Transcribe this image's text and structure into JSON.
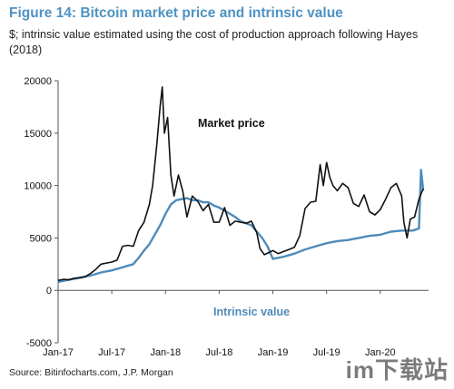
{
  "title": "Figure 14: Bitcoin market price and intrinsic value",
  "subtitle": "$; intrinsic value estimated using the cost of production approach following Hayes (2018)",
  "source": "Source: Bitinfocharts.com, J.P. Morgan",
  "watermark": "im下载站",
  "colors": {
    "market": "#111111",
    "intrinsic": "#4f8bb8",
    "title": "#4e93c2",
    "axis": "#555555"
  },
  "chart_data": {
    "type": "line",
    "title": "Figure 14: Bitcoin market price and intrinsic value",
    "ylim": [
      -5000,
      20000
    ],
    "yticks": [
      -5000,
      0,
      5000,
      10000,
      15000,
      20000
    ],
    "ytick_labels": [
      "-5000",
      "0",
      "5000",
      "10000",
      "15000",
      "20000"
    ],
    "xlim": [
      2017.0,
      2020.45
    ],
    "xticks": [
      2017.0,
      2017.5,
      2018.0,
      2018.5,
      2019.0,
      2019.5,
      2020.0
    ],
    "xtick_labels": [
      "Jan-17",
      "Jul-17",
      "Jan-18",
      "Jul-18",
      "Jan-19",
      "Jul-19",
      "Jan-20"
    ],
    "grid": false,
    "annotations": [
      {
        "text": "Market price",
        "series": "market"
      },
      {
        "text": "Intrinsic value",
        "series": "intrinsic"
      }
    ],
    "series": [
      {
        "name": "Market price",
        "x": [
          2017.0,
          2017.05,
          2017.1,
          2017.15,
          2017.2,
          2017.25,
          2017.3,
          2017.35,
          2017.4,
          2017.45,
          2017.5,
          2017.55,
          2017.6,
          2017.65,
          2017.7,
          2017.75,
          2017.8,
          2017.85,
          2017.88,
          2017.92,
          2017.95,
          2017.97,
          2017.99,
          2018.02,
          2018.05,
          2018.08,
          2018.12,
          2018.16,
          2018.2,
          2018.25,
          2018.3,
          2018.35,
          2018.4,
          2018.45,
          2018.5,
          2018.55,
          2018.6,
          2018.65,
          2018.7,
          2018.75,
          2018.8,
          2018.85,
          2018.88,
          2018.92,
          2018.96,
          2019.0,
          2019.05,
          2019.1,
          2019.15,
          2019.2,
          2019.25,
          2019.3,
          2019.35,
          2019.4,
          2019.44,
          2019.47,
          2019.5,
          2019.53,
          2019.56,
          2019.6,
          2019.65,
          2019.7,
          2019.75,
          2019.8,
          2019.85,
          2019.9,
          2019.95,
          2020.0,
          2020.05,
          2020.1,
          2020.15,
          2020.2,
          2020.22,
          2020.25,
          2020.28,
          2020.32,
          2020.36,
          2020.4
        ],
        "values": [
          950,
          1050,
          1000,
          1150,
          1200,
          1300,
          1600,
          2000,
          2500,
          2600,
          2700,
          2900,
          4200,
          4300,
          4200,
          5700,
          6500,
          8200,
          10000,
          14000,
          17500,
          19400,
          15000,
          16500,
          11000,
          9000,
          11000,
          9500,
          7000,
          9000,
          8500,
          7600,
          8200,
          6500,
          6500,
          7900,
          6200,
          6600,
          6500,
          6400,
          6600,
          5500,
          4000,
          3400,
          3600,
          3800,
          3500,
          3700,
          3900,
          4100,
          5200,
          7800,
          8400,
          8500,
          12000,
          10000,
          12200,
          10800,
          10000,
          9500,
          10200,
          9800,
          8300,
          8000,
          9100,
          7500,
          7200,
          7700,
          8700,
          9800,
          10200,
          9000,
          6500,
          5000,
          6800,
          7000,
          8700,
          9700
        ]
      },
      {
        "name": "Intrinsic value",
        "x": [
          2017.0,
          2017.1,
          2017.2,
          2017.3,
          2017.4,
          2017.5,
          2017.6,
          2017.7,
          2017.75,
          2017.8,
          2017.85,
          2017.9,
          2017.95,
          2018.0,
          2018.05,
          2018.1,
          2018.15,
          2018.2,
          2018.25,
          2018.3,
          2018.35,
          2018.4,
          2018.45,
          2018.5,
          2018.55,
          2018.6,
          2018.65,
          2018.7,
          2018.75,
          2018.8,
          2018.85,
          2018.9,
          2018.95,
          2019.0,
          2019.1,
          2019.2,
          2019.3,
          2019.4,
          2019.5,
          2019.6,
          2019.7,
          2019.8,
          2019.9,
          2020.0,
          2020.1,
          2020.2,
          2020.3,
          2020.33,
          2020.36,
          2020.38,
          2020.4
        ],
        "values": [
          800,
          1000,
          1200,
          1400,
          1700,
          1900,
          2200,
          2500,
          3100,
          3800,
          4400,
          5300,
          6200,
          7300,
          8200,
          8600,
          8700,
          8800,
          8600,
          8600,
          8400,
          8400,
          8100,
          7900,
          7600,
          7300,
          7000,
          6600,
          6400,
          6200,
          5600,
          5000,
          4200,
          3000,
          3200,
          3500,
          3900,
          4200,
          4500,
          4700,
          4800,
          5000,
          5200,
          5300,
          5600,
          5700,
          5700,
          5800,
          5900,
          11500,
          9500
        ]
      }
    ]
  }
}
